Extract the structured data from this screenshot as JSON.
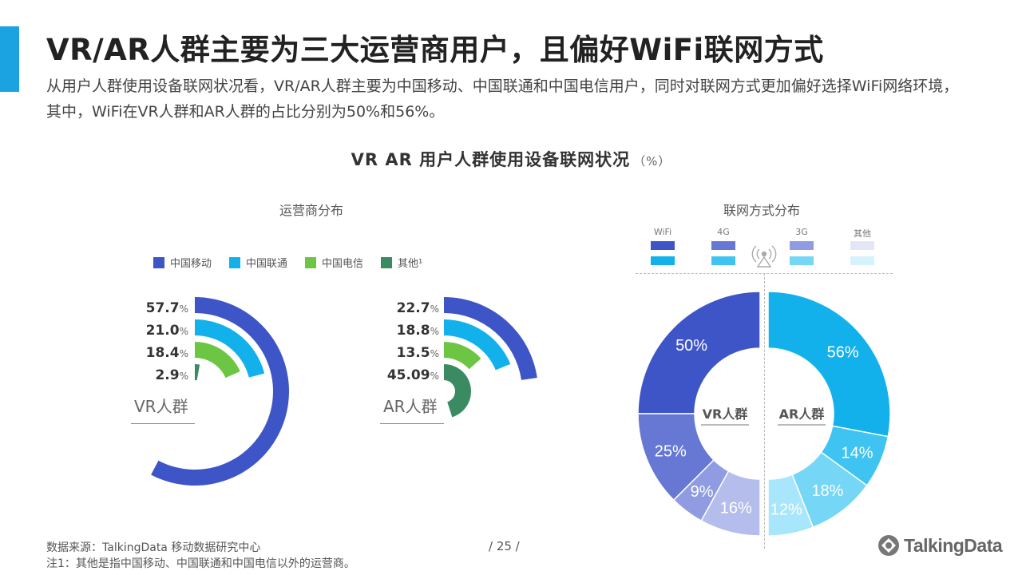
{
  "header": {
    "title": "VR/AR人群主要为三大运营商用户，且偏好WiFi联网方式",
    "subtitle": "从用户人群使用设备联网状况看，VR/AR人群主要为中国移动、中国联通和中国电信用户，同时对联网方式更加偏好选择WiFi网络环境，其中，WiFi在VR人群和AR人群的占比分别为50%和56%。"
  },
  "chart_title": "VR  AR  用户人群使用设备联网状况",
  "chart_unit": "（%）",
  "colors": {
    "accent": "#1aa3e0",
    "mobile": "#3d55c6",
    "unicom": "#12b1ec",
    "telecom": "#6cc644",
    "other": "#3a8a62"
  },
  "chart_data": [
    {
      "type": "radial-bar",
      "title": "运营商分布",
      "legend": [
        "中国移动",
        "中国联通",
        "中国电信",
        "其他¹"
      ],
      "groups": [
        {
          "name": "VR人群",
          "values": [
            57.7,
            21.0,
            18.4,
            2.9
          ],
          "labels": [
            "57.7",
            "21.0",
            "18.4",
            "2.9"
          ]
        },
        {
          "name": "AR人群",
          "values": [
            22.7,
            18.8,
            13.5,
            45.09
          ],
          "labels": [
            "22.7",
            "18.8",
            "13.5",
            "45.09"
          ]
        }
      ],
      "unit": "%"
    },
    {
      "type": "pie",
      "title": "联网方式分布",
      "legend": [
        "WiFi",
        "4G",
        "3G",
        "其他"
      ],
      "groups": [
        {
          "name": "VR人群",
          "values": [
            50,
            25,
            9,
            16
          ],
          "labels": [
            "50%",
            "25%",
            "9%",
            "16%"
          ],
          "colors": [
            "#3d55c6",
            "#6677d4",
            "#909ce1",
            "#b5bdec"
          ]
        },
        {
          "name": "AR人群",
          "values": [
            56,
            14,
            18,
            12
          ],
          "labels": [
            "56%",
            "14%",
            "18%",
            "12%"
          ],
          "colors": [
            "#12b1ec",
            "#3fc4f2",
            "#76d6f6",
            "#a8e6fb"
          ]
        }
      ]
    }
  ],
  "footer": {
    "source": "数据来源：TalkingData 移动数据研究中心",
    "note": "注1：其他是指中国移动、中国联通和中国电信以外的运营商。",
    "page": "/  25  /"
  },
  "brand": {
    "name": "TalkingData",
    "icon": "talkingdata-logo-icon"
  },
  "decor_icon": "wireless-signal-icon"
}
